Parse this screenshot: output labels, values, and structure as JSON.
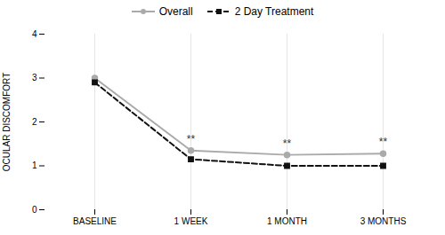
{
  "chart_data": {
    "type": "line",
    "categories": [
      "BASELINE",
      "1 WEEK",
      "1 MONTH",
      "3 MONTHS"
    ],
    "series": [
      {
        "name": "Overall",
        "color": "#aaaaaa",
        "marker": "circle",
        "line_style": "solid",
        "values": [
          3.0,
          1.35,
          1.25,
          1.28
        ]
      },
      {
        "name": "2 Day Treatment",
        "color": "#111111",
        "marker": "square",
        "line_style": "dashed",
        "values": [
          2.9,
          1.15,
          1.0,
          1.0
        ]
      }
    ],
    "annotations": [
      {
        "text": "**",
        "x": "1 WEEK",
        "y": 1.53
      },
      {
        "text": "**",
        "x": "1 MONTH",
        "y": 1.43
      },
      {
        "text": "**",
        "x": "3 MONTHS",
        "y": 1.46
      }
    ],
    "ylabel": "OCULAR DISCOMFORT",
    "ylim": [
      0,
      4
    ],
    "yticks": [
      0,
      1,
      2,
      3,
      4
    ],
    "grid": "x",
    "legend": "top"
  }
}
